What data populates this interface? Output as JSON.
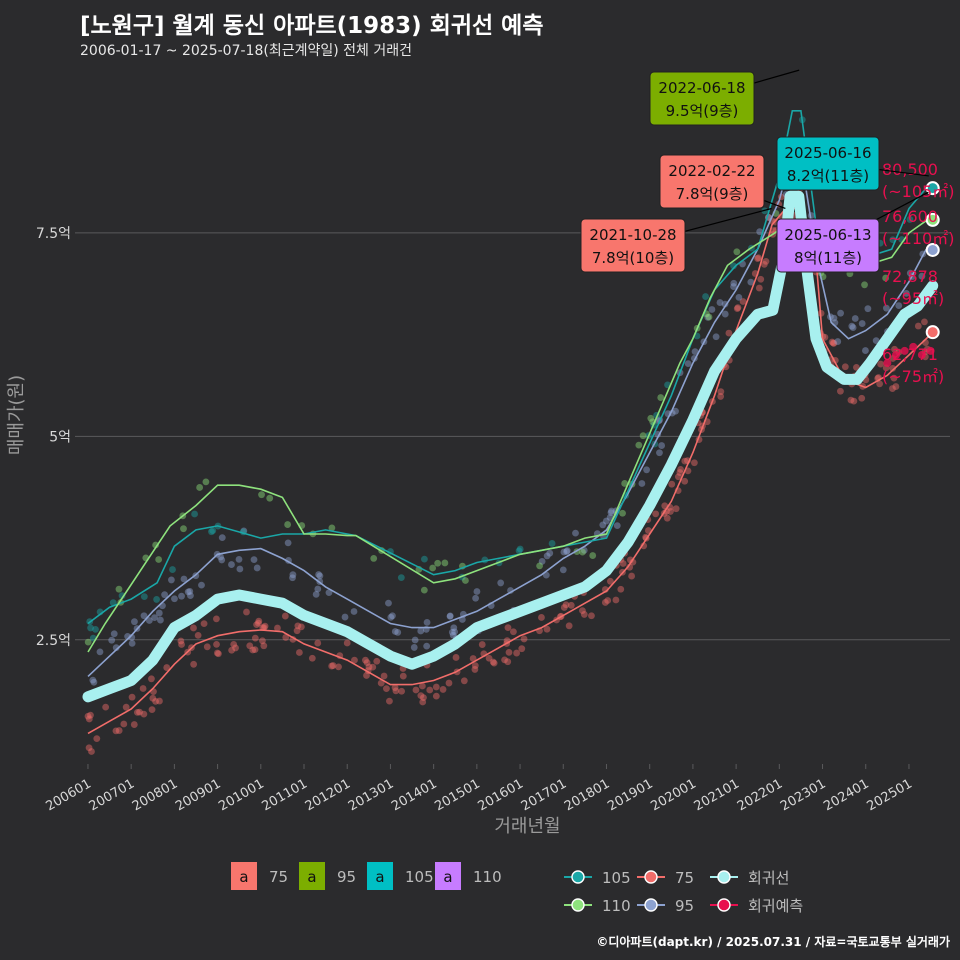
{
  "header": {
    "title": "[노원구] 월계 동신 아파트(1983) 회귀선 예측",
    "subtitle": "2006-01-17 ~ 2025-07-18(최근계약일) 전체 거래건"
  },
  "footer": {
    "credit": "©디아파트(dapt.kr) / 2025.07.31 / 자료=국토교통부 실거래가"
  },
  "colors": {
    "background": "#2b2b2d",
    "grid": "#5a5a5c",
    "s75": "#f26d6a",
    "s95": "#8da2d0",
    "s105": "#1aa7a7",
    "s110": "#8ee27d",
    "regression": "#a8f0ef",
    "forecast": "#e8104f",
    "label75": "#f8766d",
    "label95": "#7cae00",
    "label105": "#00bfc4",
    "label110": "#c77cff"
  },
  "chart_data": {
    "type": "line",
    "xlabel": "거래년월",
    "ylabel": "매매가(원)",
    "ylim": [
      0.9,
      9.6
    ],
    "xlim": [
      2005.7,
      2025.95
    ],
    "x_ticks": [
      {
        "value": 2006.0,
        "label": "200601"
      },
      {
        "value": 2007.0,
        "label": "200701"
      },
      {
        "value": 2008.0,
        "label": "200801"
      },
      {
        "value": 2009.0,
        "label": "200901"
      },
      {
        "value": 2010.0,
        "label": "201001"
      },
      {
        "value": 2011.0,
        "label": "201101"
      },
      {
        "value": 2012.0,
        "label": "201201"
      },
      {
        "value": 2013.0,
        "label": "201301"
      },
      {
        "value": 2014.0,
        "label": "201401"
      },
      {
        "value": 2015.0,
        "label": "201501"
      },
      {
        "value": 2016.0,
        "label": "201601"
      },
      {
        "value": 2017.0,
        "label": "201701"
      },
      {
        "value": 2018.0,
        "label": "201801"
      },
      {
        "value": 2019.0,
        "label": "201901"
      },
      {
        "value": 2020.0,
        "label": "202001"
      },
      {
        "value": 2021.0,
        "label": "202101"
      },
      {
        "value": 2022.0,
        "label": "202201"
      },
      {
        "value": 2023.0,
        "label": "202301"
      },
      {
        "value": 2024.0,
        "label": "202401"
      },
      {
        "value": 2025.0,
        "label": "202501"
      }
    ],
    "y_ticks": [
      {
        "value": 2.5,
        "label": "2.5억"
      },
      {
        "value": 5.0,
        "label": "5억"
      },
      {
        "value": 7.5,
        "label": "7.5억"
      }
    ],
    "series": [
      {
        "name": "75",
        "kind": "trend",
        "color": "#f26d6a",
        "x": [
          2006.0,
          2006.5,
          2007.0,
          2007.5,
          2008.0,
          2008.5,
          2009.0,
          2009.5,
          2010.0,
          2010.5,
          2011.0,
          2011.5,
          2012.0,
          2012.5,
          2013.0,
          2013.5,
          2014.0,
          2014.5,
          2015.0,
          2015.5,
          2016.0,
          2016.5,
          2017.0,
          2017.5,
          2018.0,
          2018.5,
          2019.0,
          2019.5,
          2020.0,
          2020.5,
          2021.0,
          2021.5,
          2021.83,
          2022.15,
          2022.5,
          2022.8,
          2023.0,
          2023.5,
          2024.0,
          2024.5,
          2025.0,
          2025.5
        ],
        "y": [
          1.35,
          1.5,
          1.65,
          1.9,
          2.2,
          2.45,
          2.55,
          2.6,
          2.62,
          2.6,
          2.45,
          2.35,
          2.25,
          2.1,
          1.95,
          1.95,
          2.0,
          2.1,
          2.25,
          2.4,
          2.55,
          2.65,
          2.8,
          2.95,
          3.1,
          3.4,
          3.8,
          4.2,
          4.8,
          5.5,
          6.3,
          7.0,
          7.6,
          7.8,
          7.8,
          7.5,
          6.2,
          5.7,
          5.6,
          5.75,
          6.0,
          6.25
        ]
      },
      {
        "name": "95",
        "kind": "trend",
        "color": "#8da2d0",
        "x": [
          2006.0,
          2006.5,
          2007.0,
          2007.5,
          2008.0,
          2008.5,
          2009.0,
          2009.5,
          2010.0,
          2010.5,
          2011.0,
          2011.5,
          2012.0,
          2012.5,
          2013.0,
          2013.5,
          2014.0,
          2014.5,
          2015.0,
          2015.5,
          2016.0,
          2016.5,
          2017.0,
          2017.5,
          2018.0,
          2018.5,
          2019.0,
          2019.5,
          2020.0,
          2020.5,
          2021.0,
          2021.5,
          2022.0,
          2022.3,
          2022.6,
          2022.9,
          2023.2,
          2023.6,
          2024.0,
          2024.5,
          2025.0,
          2025.4
        ],
        "y": [
          2.05,
          2.3,
          2.55,
          2.85,
          3.1,
          3.3,
          3.55,
          3.6,
          3.62,
          3.5,
          3.35,
          3.15,
          3.0,
          2.85,
          2.7,
          2.65,
          2.65,
          2.75,
          2.85,
          3.0,
          3.15,
          3.3,
          3.5,
          3.65,
          3.85,
          4.3,
          4.8,
          5.3,
          5.9,
          6.4,
          6.8,
          7.3,
          7.9,
          8.5,
          8.1,
          7.1,
          6.4,
          6.2,
          6.3,
          6.5,
          6.9,
          7.3
        ]
      },
      {
        "name": "105",
        "kind": "trend",
        "color": "#1aa7a7",
        "x": [
          2006.0,
          2006.5,
          2007.0,
          2007.6,
          2008.0,
          2008.5,
          2009.0,
          2010.0,
          2010.5,
          2011.0,
          2011.5,
          2012.0,
          2012.2,
          2014.0,
          2014.5,
          2015.0,
          2015.5,
          2016.0,
          2016.5,
          2017.0,
          2017.5,
          2018.0,
          2019.5,
          2020.0,
          2020.5,
          2021.0,
          2021.5,
          2022.0,
          2022.3,
          2022.5,
          2022.7,
          2022.9,
          2023.2,
          2024.0,
          2024.6,
          2025.0,
          2025.4
        ],
        "y": [
          2.7,
          2.9,
          3.0,
          3.2,
          3.65,
          3.85,
          3.9,
          3.75,
          3.8,
          3.8,
          3.85,
          3.8,
          3.78,
          3.3,
          3.35,
          3.45,
          3.5,
          3.55,
          3.6,
          3.65,
          3.7,
          3.75,
          5.5,
          6.2,
          6.8,
          7.1,
          7.3,
          8.2,
          9.0,
          9.0,
          8.2,
          7.4,
          7.3,
          7.2,
          7.3,
          7.8,
          8.05
        ]
      },
      {
        "name": "110",
        "kind": "trend",
        "color": "#8ee27d",
        "x": [
          2006.0,
          2006.4,
          2006.9,
          2007.4,
          2007.9,
          2008.5,
          2009.0,
          2009.5,
          2010.0,
          2010.5,
          2011.0,
          2011.5,
          2012.0,
          2012.2,
          2014.0,
          2014.5,
          2015.0,
          2015.5,
          2016.0,
          2016.5,
          2017.0,
          2017.5,
          2018.0,
          2019.7,
          2020.0,
          2020.4,
          2020.8,
          2021.3,
          2021.9,
          2022.1,
          2022.5,
          2022.9,
          2023.3,
          2024.0,
          2024.6,
          2025.0,
          2025.4
        ],
        "y": [
          2.35,
          2.7,
          3.1,
          3.5,
          3.9,
          4.15,
          4.4,
          4.4,
          4.35,
          4.25,
          3.8,
          3.8,
          3.78,
          3.78,
          3.2,
          3.25,
          3.35,
          3.45,
          3.55,
          3.6,
          3.65,
          3.75,
          3.8,
          5.9,
          6.2,
          6.7,
          7.1,
          7.3,
          7.5,
          7.6,
          7.4,
          7.2,
          7.15,
          7.1,
          7.2,
          7.5,
          7.65
        ]
      },
      {
        "name": "회귀선",
        "kind": "regression",
        "color": "#a8f0ef",
        "x": [
          2006.0,
          2006.5,
          2007.0,
          2007.5,
          2008.0,
          2008.5,
          2009.0,
          2009.5,
          2010.0,
          2010.5,
          2011.0,
          2011.5,
          2012.0,
          2012.5,
          2013.0,
          2013.5,
          2014.0,
          2014.5,
          2015.0,
          2015.5,
          2016.0,
          2016.5,
          2017.0,
          2017.5,
          2018.0,
          2018.5,
          2019.0,
          2019.5,
          2020.0,
          2020.5,
          2021.0,
          2021.5,
          2021.85,
          2022.1,
          2022.25,
          2022.45,
          2022.65,
          2022.85,
          2023.1,
          2023.5,
          2023.8,
          2024.1,
          2024.5,
          2024.9,
          2025.2,
          2025.55
        ],
        "y": [
          1.8,
          1.9,
          2.0,
          2.25,
          2.65,
          2.8,
          3.0,
          3.05,
          3.0,
          2.95,
          2.8,
          2.7,
          2.6,
          2.45,
          2.3,
          2.2,
          2.3,
          2.45,
          2.65,
          2.75,
          2.85,
          2.95,
          3.05,
          3.15,
          3.35,
          3.7,
          4.15,
          4.65,
          5.2,
          5.8,
          6.2,
          6.5,
          6.55,
          7.2,
          7.95,
          7.95,
          7.0,
          6.2,
          5.85,
          5.7,
          5.7,
          5.9,
          6.2,
          6.5,
          6.6,
          6.85
        ]
      },
      {
        "name": "회귀예측",
        "kind": "forecast-points",
        "color": "#e8104f",
        "x": [
          2024.5,
          2024.7,
          2024.9,
          2025.1,
          2025.3,
          2025.5
        ],
        "y": [
          5.9,
          6.0,
          6.05,
          6.1,
          6.0,
          6.05
        ]
      }
    ],
    "endpoints": [
      {
        "series": "105",
        "x": 2025.55,
        "y": 8.05
      },
      {
        "series": "110",
        "x": 2025.55,
        "y": 7.66
      },
      {
        "series": "95",
        "x": 2025.55,
        "y": 7.29
      },
      {
        "series": "75",
        "x": 2025.55,
        "y": 6.28
      }
    ],
    "annotations": [
      {
        "date": "2022-06-18",
        "value": "9.5억(9층)",
        "series": "95",
        "point_x": 2022.46,
        "point_y": 9.5
      },
      {
        "date": "2022-02-22",
        "value": "7.8억(9층)",
        "series": "75",
        "point_x": 2022.14,
        "point_y": 7.8
      },
      {
        "date": "2021-10-28",
        "value": "7.8억(10층)",
        "series": "75",
        "point_x": 2021.82,
        "point_y": 7.8
      },
      {
        "date": "2025-06-16",
        "value": "8.2억(11층)",
        "series": "105",
        "point_x": 2025.46,
        "point_y": 8.2
      },
      {
        "date": "2025-06-13",
        "value": "8억(11층)",
        "series": "110",
        "point_x": 2025.45,
        "point_y": 8.0
      }
    ],
    "forecast_labels": [
      {
        "value": "80,500",
        "area": "(~105㎡)"
      },
      {
        "value": "76,600",
        "area": "(~110㎡)"
      },
      {
        "value": "72,878",
        "area": "(~95㎡)"
      },
      {
        "value": "62,771",
        "area": "(~75㎡)"
      }
    ],
    "legend": {
      "placement": "bottom",
      "label_keys": [
        {
          "glyph": "a",
          "name": "75",
          "color": "#f8766d"
        },
        {
          "glyph": "a",
          "name": "95",
          "color": "#7cae00"
        },
        {
          "glyph": "a",
          "name": "105",
          "color": "#00bfc4"
        },
        {
          "glyph": "a",
          "name": "110",
          "color": "#c77cff"
        }
      ],
      "line_keys": [
        {
          "name": "105",
          "color": "#1aa7a7"
        },
        {
          "name": "110",
          "color": "#8ee27d"
        },
        {
          "name": "75",
          "color": "#f26d6a"
        },
        {
          "name": "95",
          "color": "#8da2d0"
        },
        {
          "name": "회귀선",
          "color": "#a8f0ef"
        },
        {
          "name": "회귀예측",
          "color": "#e8104f"
        }
      ]
    }
  }
}
